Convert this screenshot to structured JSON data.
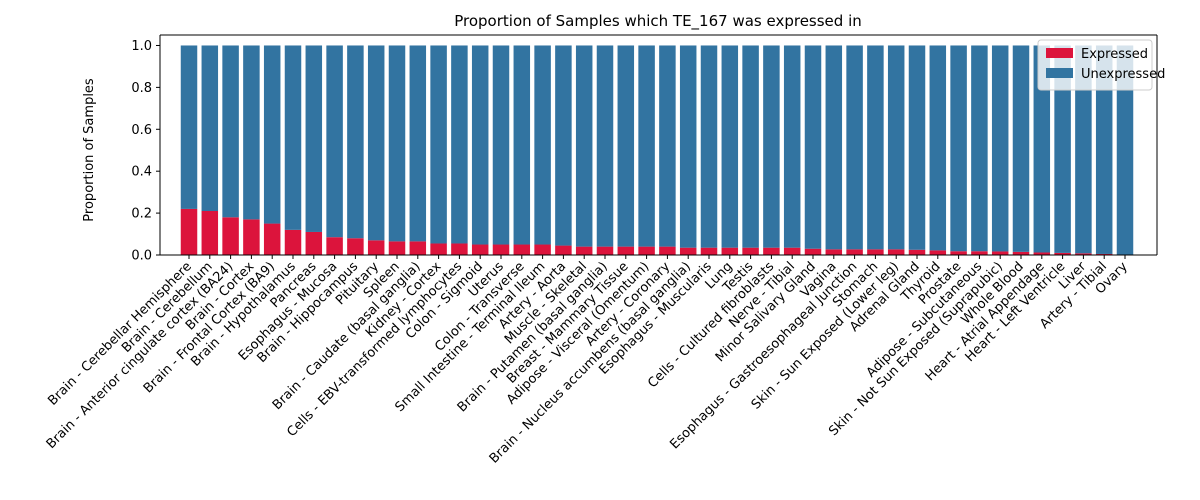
{
  "chart_data": {
    "type": "bar",
    "stacked": true,
    "title": "Proportion of Samples which TE_167 was expressed in",
    "xlabel": "",
    "ylabel": "Proportion of Samples",
    "ylim": [
      0,
      1.05
    ],
    "yticks": [
      0.0,
      0.2,
      0.4,
      0.6,
      0.8,
      1.0
    ],
    "ytick_labels": [
      "0.0",
      "0.2",
      "0.4",
      "0.6",
      "0.8",
      "1.0"
    ],
    "grid": false,
    "legend_position": "top-right",
    "categories": [
      "Brain - Cerebellar Hemisphere",
      "Brain - Cerebellum",
      "Brain - Anterior cingulate cortex (BA24)",
      "Brain - Cortex",
      "Brain - Frontal Cortex (BA9)",
      "Brain - Hypothalamus",
      "Pancreas",
      "Esophagus - Mucosa",
      "Brain - Hippocampus",
      "Pituitary",
      "Spleen",
      "Brain - Caudate (basal ganglia)",
      "Kidney - Cortex",
      "Cells - EBV-transformed lymphocytes",
      "Colon - Sigmoid",
      "Uterus",
      "Colon - Transverse",
      "Small Intestine - Terminal Ileum",
      "Artery - Aorta",
      "Muscle - Skeletal",
      "Brain - Putamen (basal ganglia)",
      "Breast - Mammary Tissue",
      "Adipose - Visceral (Omentum)",
      "Artery - Coronary",
      "Brain - Nucleus accumbens (basal ganglia)",
      "Esophagus - Muscularis",
      "Lung",
      "Testis",
      "Cells - Cultured fibroblasts",
      "Nerve - Tibial",
      "Minor Salivary Gland",
      "Vagina",
      "Esophagus - Gastroesophageal Junction",
      "Stomach",
      "Skin - Sun Exposed (Lower leg)",
      "Adrenal Gland",
      "Thyroid",
      "Prostate",
      "Adipose - Subcutaneous",
      "Skin - Not Sun Exposed (Suprapubic)",
      "Whole Blood",
      "Heart - Atrial Appendage",
      "Heart - Left Ventricle",
      "Liver",
      "Artery - Tibial",
      "Ovary"
    ],
    "series": [
      {
        "name": "Expressed",
        "color": "#dc143c",
        "values": [
          0.22,
          0.21,
          0.18,
          0.17,
          0.15,
          0.12,
          0.11,
          0.085,
          0.08,
          0.07,
          0.065,
          0.065,
          0.055,
          0.055,
          0.05,
          0.05,
          0.05,
          0.05,
          0.045,
          0.04,
          0.04,
          0.04,
          0.04,
          0.04,
          0.035,
          0.035,
          0.035,
          0.035,
          0.035,
          0.035,
          0.03,
          0.027,
          0.027,
          0.027,
          0.027,
          0.025,
          0.022,
          0.018,
          0.018,
          0.017,
          0.015,
          0.012,
          0.01,
          0.008,
          0.005,
          0.0
        ]
      },
      {
        "name": "Unexpressed",
        "color": "#3274a1",
        "values": [
          0.78,
          0.79,
          0.82,
          0.83,
          0.85,
          0.88,
          0.89,
          0.915,
          0.92,
          0.93,
          0.935,
          0.935,
          0.945,
          0.945,
          0.95,
          0.95,
          0.95,
          0.95,
          0.955,
          0.96,
          0.96,
          0.96,
          0.96,
          0.96,
          0.965,
          0.965,
          0.965,
          0.965,
          0.965,
          0.965,
          0.97,
          0.973,
          0.973,
          0.973,
          0.973,
          0.975,
          0.978,
          0.982,
          0.982,
          0.983,
          0.985,
          0.988,
          0.99,
          0.992,
          0.995,
          1.0
        ]
      }
    ]
  }
}
